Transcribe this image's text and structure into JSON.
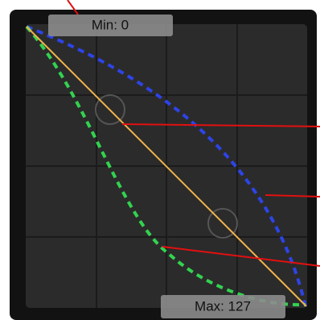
{
  "labels": {
    "min": "Min: 0",
    "max": "Max: 127"
  }
}
